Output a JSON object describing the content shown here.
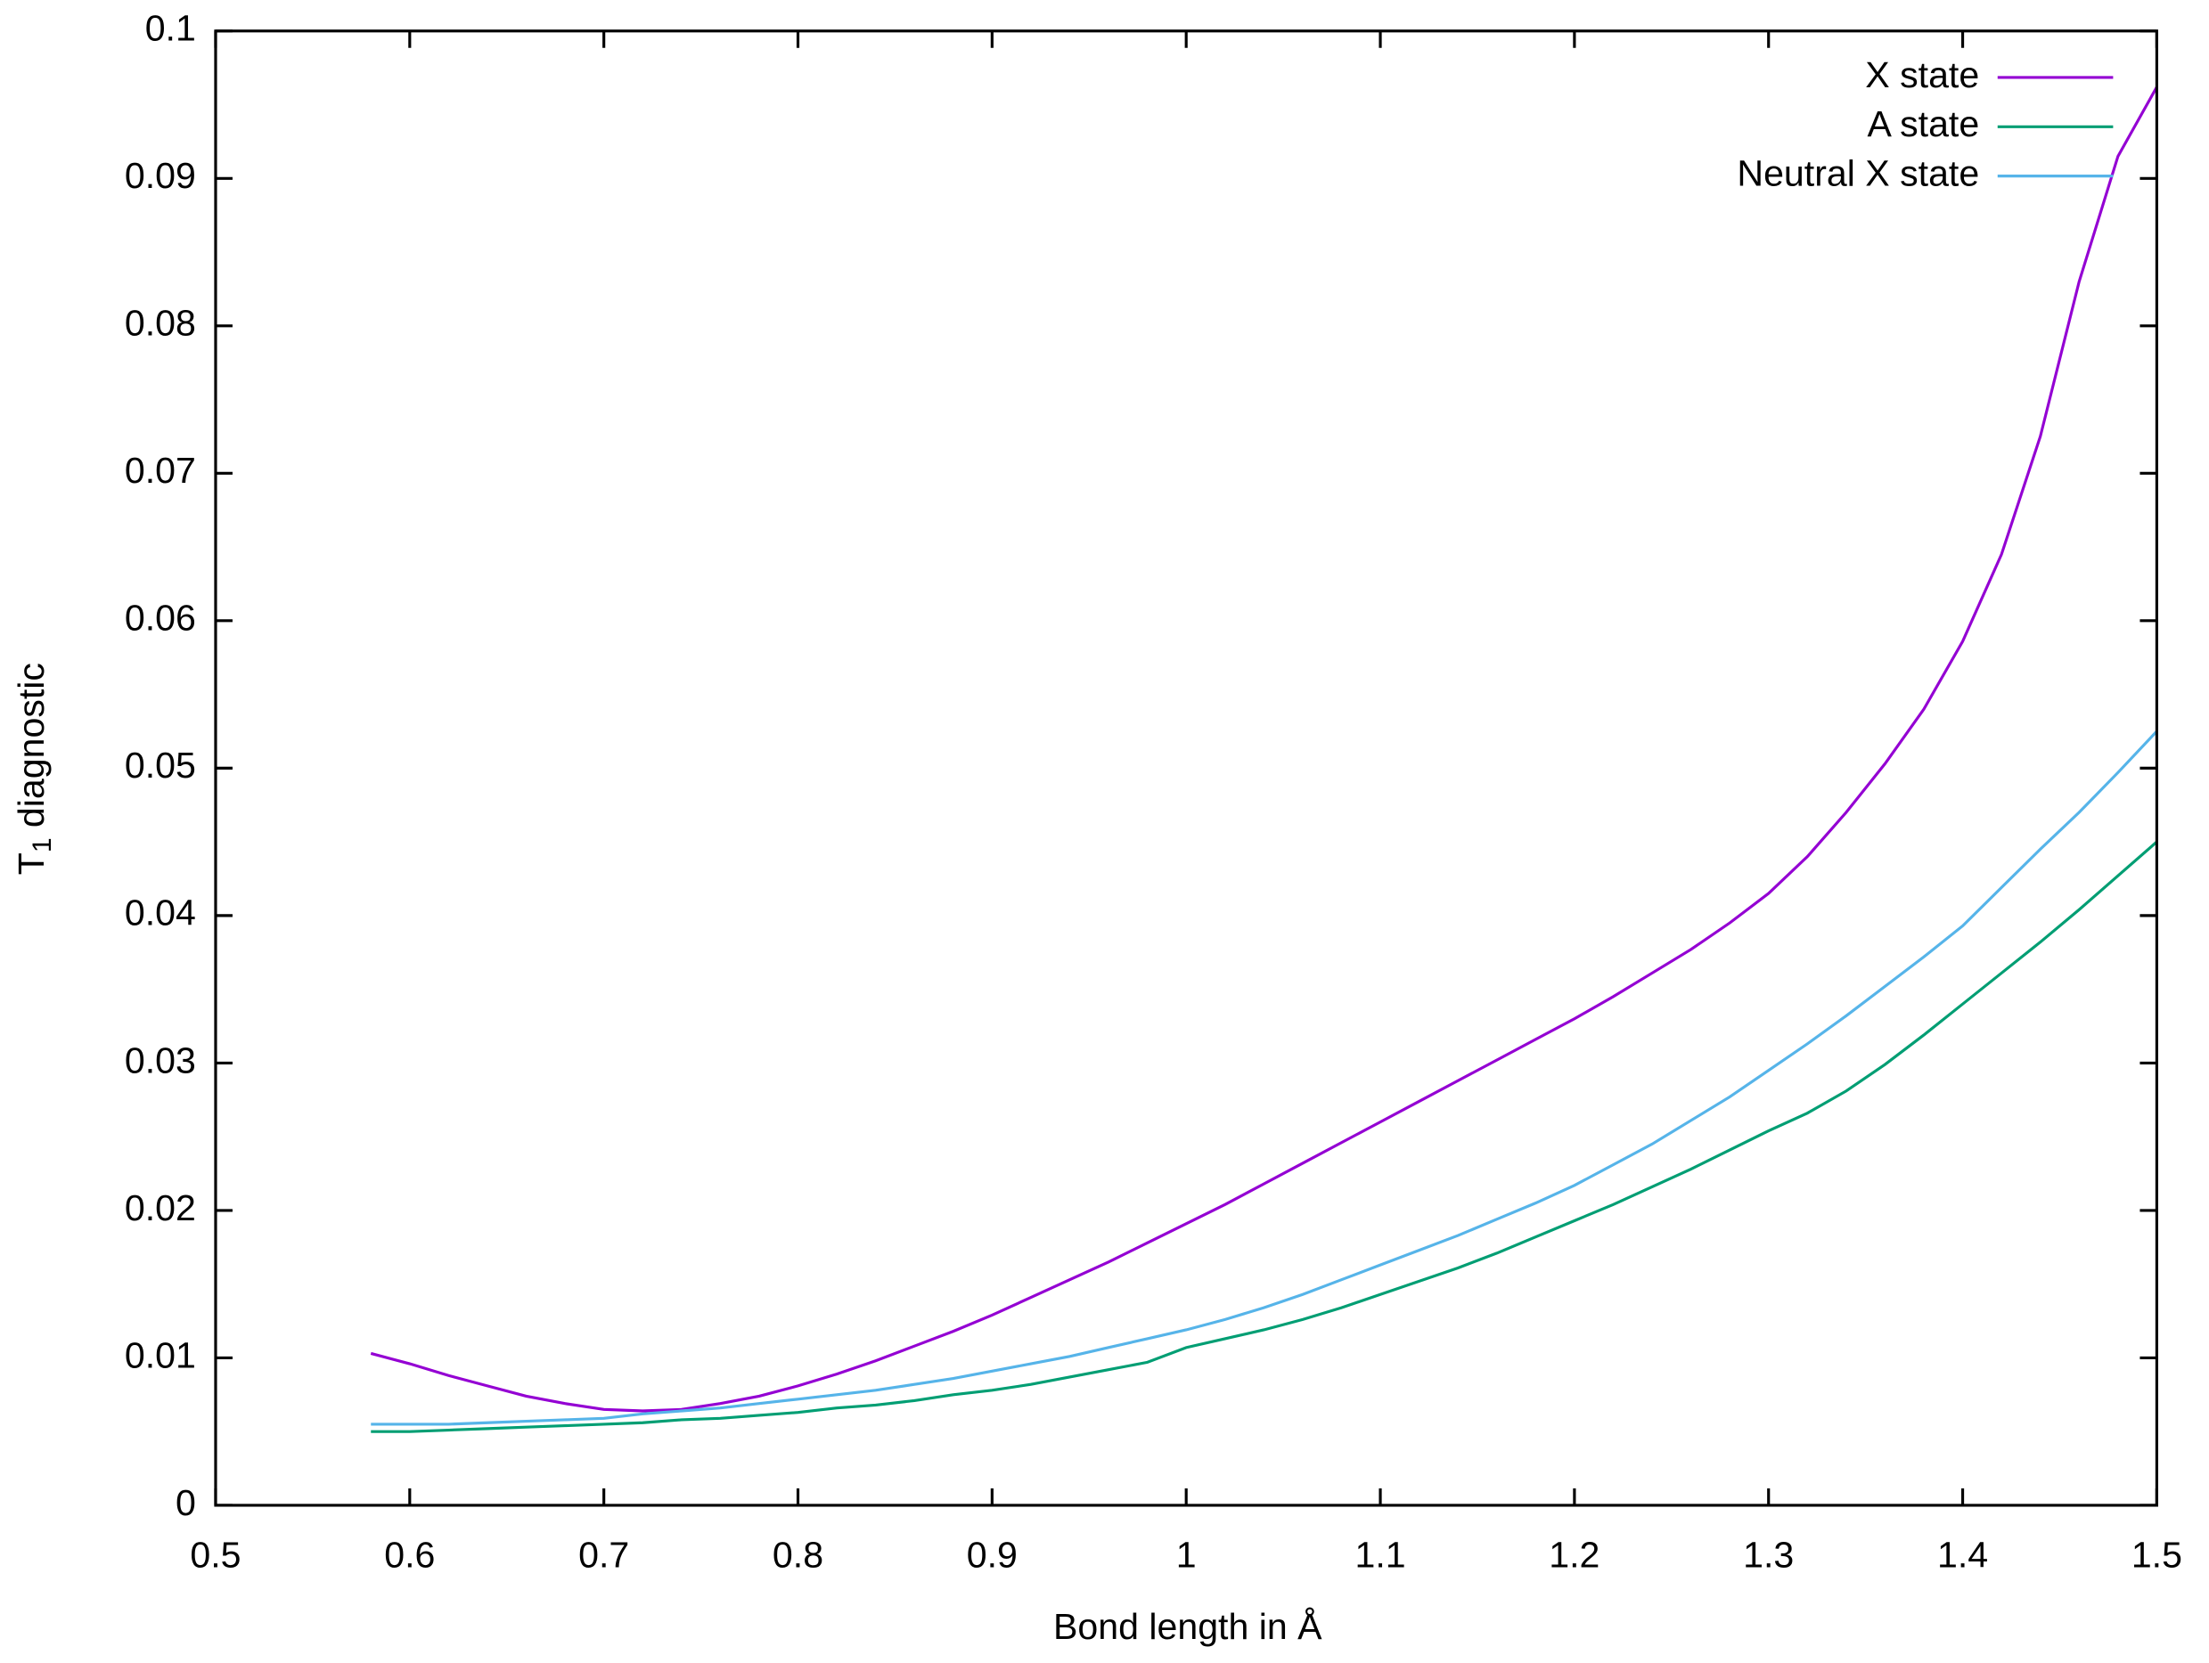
{
  "chart_data": {
    "type": "line",
    "xlabel": "Bond length in Å",
    "ylabel": {
      "main": "T",
      "sub": "1",
      "rest": " diagnostic"
    },
    "xlim": [
      0.5,
      1.5
    ],
    "xticks": [
      0.5,
      0.6,
      0.7,
      0.8,
      0.9,
      1,
      1.1,
      1.2,
      1.3,
      1.4,
      1.5
    ],
    "ylim": [
      0,
      0.1
    ],
    "yticks": [
      0,
      0.01,
      0.02,
      0.03,
      0.04,
      0.05,
      0.06,
      0.07,
      0.08,
      0.09,
      0.1
    ],
    "legend": "top-right",
    "x": [
      0.58,
      0.6,
      0.62,
      0.64,
      0.66,
      0.68,
      0.7,
      0.72,
      0.74,
      0.76,
      0.78,
      0.8,
      0.82,
      0.84,
      0.86,
      0.88,
      0.9,
      0.92,
      0.94,
      0.96,
      0.98,
      1.0,
      1.02,
      1.04,
      1.06,
      1.08,
      1.1,
      1.12,
      1.14,
      1.16,
      1.18,
      1.2,
      1.22,
      1.24,
      1.26,
      1.28,
      1.3,
      1.32,
      1.34,
      1.36,
      1.38,
      1.4,
      1.42,
      1.44,
      1.46,
      1.48,
      1.5
    ],
    "series": [
      {
        "name": "X state",
        "color": "#9400d3",
        "values": [
          0.0103,
          0.0096,
          0.0088,
          0.0081,
          0.0074,
          0.0069,
          0.0065,
          0.0064,
          0.0065,
          0.0069,
          0.0074,
          0.0081,
          0.0089,
          0.0098,
          0.0108,
          0.0118,
          0.0129,
          0.0141,
          0.0153,
          0.0165,
          0.0178,
          0.0191,
          0.0204,
          0.0218,
          0.0232,
          0.0246,
          0.026,
          0.0274,
          0.0288,
          0.0302,
          0.0316,
          0.033,
          0.0345,
          0.0361,
          0.0377,
          0.0395,
          0.0415,
          0.044,
          0.047,
          0.0503,
          0.054,
          0.0586,
          0.0645,
          0.0725,
          0.083,
          0.0915,
          0.0962
        ]
      },
      {
        "name": "A state",
        "color": "#009e73",
        "values": [
          0.005,
          0.005,
          0.0051,
          0.0052,
          0.0053,
          0.0054,
          0.0055,
          0.0056,
          0.0058,
          0.0059,
          0.0061,
          0.0063,
          0.0066,
          0.0068,
          0.0071,
          0.0075,
          0.0078,
          0.0082,
          0.0087,
          0.0092,
          0.0097,
          0.0107,
          0.0113,
          0.0119,
          0.0126,
          0.0134,
          0.0143,
          0.0152,
          0.0161,
          0.0171,
          0.0182,
          0.0193,
          0.0204,
          0.0216,
          0.0228,
          0.0241,
          0.0254,
          0.0266,
          0.0281,
          0.0299,
          0.0319,
          0.034,
          0.0361,
          0.0382,
          0.0404,
          0.0427,
          0.045
        ]
      },
      {
        "name": "Neutral X state",
        "color": "#56b4e9",
        "values": [
          0.0055,
          0.0055,
          0.0055,
          0.0056,
          0.0057,
          0.0058,
          0.0059,
          0.0062,
          0.0064,
          0.0066,
          0.0069,
          0.0072,
          0.0075,
          0.0078,
          0.0082,
          0.0086,
          0.0091,
          0.0096,
          0.0101,
          0.0107,
          0.0113,
          0.0119,
          0.0126,
          0.0134,
          0.0143,
          0.0153,
          0.0163,
          0.0173,
          0.0183,
          0.0194,
          0.0205,
          0.0217,
          0.0231,
          0.0245,
          0.0261,
          0.0277,
          0.0295,
          0.0313,
          0.0332,
          0.0352,
          0.0372,
          0.0393,
          0.0419,
          0.0445,
          0.047,
          0.0497,
          0.0525
        ]
      }
    ]
  }
}
